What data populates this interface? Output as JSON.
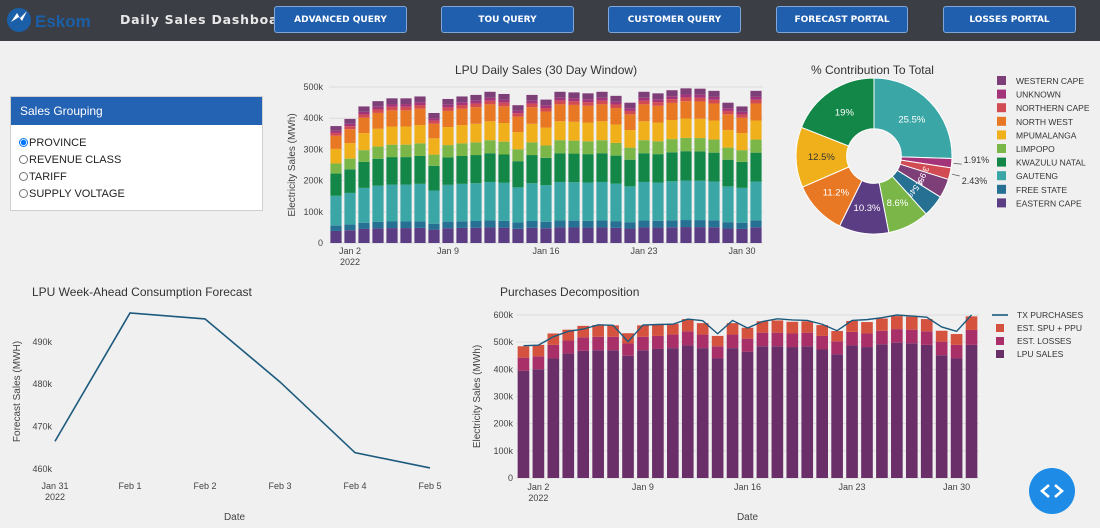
{
  "header": {
    "logo_text": "Eskom",
    "title": "Daily Sales Dashboard"
  },
  "nav": [
    "ADVANCED QUERY",
    "TOU QUERY",
    "CUSTOMER QUERY",
    "FORECAST PORTAL",
    "LOSSES PORTAL"
  ],
  "sales_grouping": {
    "title": "Sales Grouping",
    "options": [
      "PROVINCE",
      "REVENUE CLASS",
      "TARIFF",
      "SUPPLY VOLTAGE"
    ],
    "selected": "PROVINCE"
  },
  "colors": {
    "WESTERN CAPE": "#7e3f78",
    "UNKNOWN": "#a4347a",
    "NORTHERN CAPE": "#d24b53",
    "NORTH WEST": "#e97824",
    "MPUMALANGA": "#f0b01c",
    "LIMPOPO": "#7ab648",
    "KWAZULU NATAL": "#128747",
    "GAUTENG": "#3aa6a6",
    "FREE STATE": "#267193",
    "EASTERN CAPE": "#5a3d83",
    "line": "#1c5a7d",
    "lpu": "#6a2f68",
    "losses": "#a92f68",
    "spu": "#d5533e"
  },
  "chart_data": [
    {
      "type": "bar",
      "title": "LPU Daily Sales (30 Day Window)",
      "ylabel": "Electricity Sales (MWh)",
      "xlabel": "",
      "stacked": true,
      "ylim": [
        0,
        500000
      ],
      "y_ticks": [
        "0",
        "100k",
        "200k",
        "300k",
        "400k",
        "500k"
      ],
      "x_ticks": [
        {
          "day": 2,
          "label": "Jan 2",
          "sub": "2022"
        },
        {
          "day": 9,
          "label": "Jan 9"
        },
        {
          "day": 16,
          "label": "Jan 16"
        },
        {
          "day": 23,
          "label": "Jan 23"
        },
        {
          "day": 30,
          "label": "Jan 30"
        }
      ],
      "days": [
        1,
        2,
        3,
        4,
        5,
        6,
        7,
        8,
        9,
        10,
        11,
        12,
        13,
        14,
        15,
        16,
        17,
        18,
        19,
        20,
        21,
        22,
        23,
        24,
        25,
        26,
        27,
        28,
        29,
        30,
        31
      ],
      "totals": [
        375000,
        398000,
        438000,
        455000,
        464000,
        464000,
        470000,
        417000,
        462000,
        470000,
        475000,
        485000,
        478000,
        442000,
        475000,
        460000,
        485000,
        483000,
        480000,
        485000,
        472000,
        450000,
        485000,
        480000,
        490000,
        496000,
        495000,
        488000,
        450000,
        438000,
        488000
      ],
      "series": [
        "EASTERN CAPE",
        "FREE STATE",
        "GAUTENG",
        "KWAZULU NATAL",
        "LIMPOPO",
        "MPUMALANGA",
        "NORTH WEST",
        "NORTHERN CAPE",
        "UNKNOWN",
        "WESTERN CAPE"
      ],
      "shares": [
        0.103,
        0.0454,
        0.255,
        0.19,
        0.086,
        0.125,
        0.112,
        0.0243,
        0.0191,
        0.0395
      ]
    },
    {
      "type": "pie",
      "title": "% Contribution To Total",
      "hole": 0.35,
      "slices": [
        {
          "name": "GAUTENG",
          "value": 25.5,
          "label": "25.5%"
        },
        {
          "name": "UNKNOWN",
          "value": 1.91,
          "label": "1.91%"
        },
        {
          "name": "NORTHERN CAPE",
          "value": 2.43,
          "label": "2.43%"
        },
        {
          "name": "WESTERN CAPE",
          "value": 3.95,
          "label": "3.95%"
        },
        {
          "name": "FREE STATE",
          "value": 4.54,
          "label": "4.54%"
        },
        {
          "name": "LIMPOPO",
          "value": 8.6,
          "label": "8.6%"
        },
        {
          "name": "EASTERN CAPE",
          "value": 10.3,
          "label": "10.3%"
        },
        {
          "name": "NORTH WEST",
          "value": 11.2,
          "label": "11.2%"
        },
        {
          "name": "MPUMALANGA",
          "value": 12.5,
          "label": "12.5%"
        },
        {
          "name": "KWAZULU NATAL",
          "value": 19,
          "label": "19%"
        }
      ],
      "legend": [
        "WESTERN CAPE",
        "UNKNOWN",
        "NORTHERN CAPE",
        "NORTH WEST",
        "MPUMALANGA",
        "LIMPOPO",
        "KWAZULU NATAL",
        "GAUTENG",
        "FREE STATE",
        "EASTERN CAPE"
      ]
    },
    {
      "type": "line",
      "title": "LPU Week-Ahead Consumption Forecast",
      "xlabel": "Date",
      "ylabel": "Forecast Sales (MWH)",
      "ylim": [
        459000,
        497500
      ],
      "x": [
        "Jan 31",
        "Feb 1",
        "Feb 2",
        "Feb 3",
        "Feb 4",
        "Feb 5"
      ],
      "x_sub": "2022",
      "values": [
        466500,
        496800,
        495400,
        480500,
        463800,
        460200
      ],
      "y_ticks": [
        460000,
        470000,
        480000,
        490000
      ],
      "y_tick_labels": [
        "460k",
        "470k",
        "480k",
        "490k"
      ]
    },
    {
      "type": "bar",
      "title": "Purchases Decomposition",
      "xlabel": "Date",
      "ylabel": "Electricity Sales (MWh)",
      "stacked": true,
      "ylim": [
        0,
        600000
      ],
      "y_ticks": [
        "0",
        "100k",
        "200k",
        "300k",
        "400k",
        "500k",
        "600k"
      ],
      "x_ticks": [
        {
          "day": 2,
          "label": "Jan 2",
          "sub": "2022"
        },
        {
          "day": 9,
          "label": "Jan 9"
        },
        {
          "day": 16,
          "label": "Jan 16"
        },
        {
          "day": 23,
          "label": "Jan 23"
        },
        {
          "day": 30,
          "label": "Jan 30"
        }
      ],
      "legend": [
        "TX PURCHASES",
        "EST. SPU + PPU",
        "EST. LOSSES",
        "LPU SALES"
      ],
      "days": [
        1,
        2,
        3,
        4,
        5,
        6,
        7,
        8,
        9,
        10,
        11,
        12,
        13,
        14,
        15,
        16,
        17,
        18,
        19,
        20,
        21,
        22,
        23,
        24,
        25,
        26,
        27,
        28,
        29,
        30,
        31
      ],
      "lpu": [
        395000,
        400000,
        440000,
        458000,
        468000,
        470000,
        470000,
        450000,
        470000,
        475000,
        478000,
        488000,
        478000,
        440000,
        478000,
        465000,
        485000,
        485000,
        482000,
        485000,
        473000,
        455000,
        488000,
        482000,
        492000,
        498000,
        496000,
        490000,
        452000,
        440000,
        490000
      ],
      "losses": [
        48000,
        48000,
        50000,
        48000,
        50000,
        50000,
        50000,
        45000,
        50000,
        48000,
        50000,
        52000,
        50000,
        45000,
        50000,
        48000,
        50000,
        50000,
        50000,
        50000,
        50000,
        48000,
        50000,
        50000,
        50000,
        50000,
        50000,
        50000,
        50000,
        50000,
        55000
      ],
      "spu": [
        42000,
        42000,
        42000,
        40000,
        42000,
        43000,
        42000,
        38000,
        42000,
        42000,
        40000,
        45000,
        42000,
        38000,
        42000,
        40000,
        42000,
        45000,
        43000,
        42000,
        40000,
        38000,
        40000,
        42000,
        45000,
        48000,
        48000,
        45000,
        40000,
        40000,
        50000
      ],
      "tx": [
        487000,
        489000,
        520000,
        540000,
        548000,
        564000,
        562000,
        502000,
        563000,
        565000,
        566000,
        585000,
        579000,
        531000,
        580000,
        552000,
        576000,
        586000,
        582000,
        580000,
        566000,
        542000,
        580000,
        583000,
        590000,
        600000,
        596000,
        592000,
        556000,
        540000,
        600000
      ]
    }
  ]
}
